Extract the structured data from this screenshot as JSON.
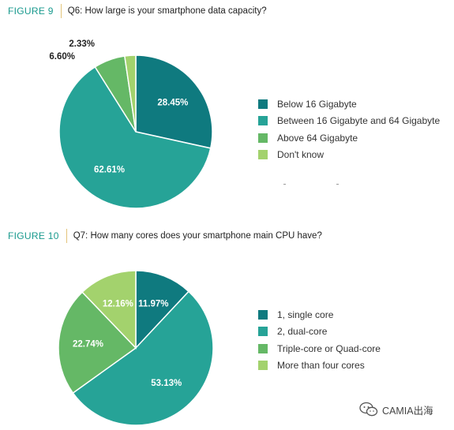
{
  "figures": [
    {
      "figure_label": "FIGURE 9",
      "question": "Q6: How large is your smartphone data capacity?"
    },
    {
      "figure_label": "FIGURE 10",
      "question": "Q7: How many cores does your smartphone main CPU have?"
    }
  ],
  "chart_data": [
    {
      "type": "pie",
      "title": "Q6: How large is your smartphone data capacity?",
      "categories": [
        "Below 16 Gigabyte",
        "Between 16 Gigabyte and 64 Gigabyte",
        "Above 64 Gigabyte",
        "Don't know"
      ],
      "values": [
        28.45,
        62.61,
        6.6,
        2.33
      ],
      "value_labels": [
        "28.45%",
        "62.61%",
        "6.60%",
        "2.33%"
      ],
      "colors": [
        "#0f7a7f",
        "#26a397",
        "#65b866",
        "#a3d26d"
      ],
      "legend_position": "right"
    },
    {
      "type": "pie",
      "title": "Q7: How many cores does your smartphone main CPU have?",
      "categories": [
        "1, single core",
        "2, dual-core",
        "Triple-core or Quad-core",
        "More than four cores"
      ],
      "values": [
        11.97,
        53.13,
        22.74,
        12.16
      ],
      "value_labels": [
        "11.97%",
        "53.13%",
        "22.74%",
        "12.16%"
      ],
      "colors": [
        "#0f7a7f",
        "#26a397",
        "#65b866",
        "#a3d26d"
      ],
      "legend_position": "right"
    }
  ],
  "watermark": {
    "text": "CAMIA出海",
    "icon": "wechat-icon"
  }
}
